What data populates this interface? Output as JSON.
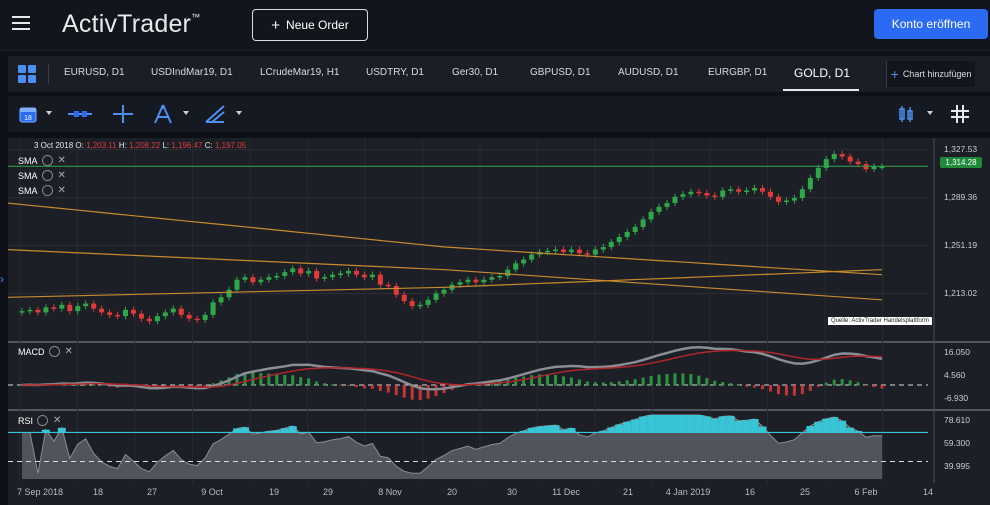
{
  "header": {
    "logo_text": "ActivTrader",
    "logo_tm": "™",
    "new_order_label": "Neue Order",
    "open_account_label": "Konto eröffnen"
  },
  "tabs": [
    {
      "label": "EURUSD, D1",
      "active": false
    },
    {
      "label": "USDIndMar19, D1",
      "active": false
    },
    {
      "label": "LCrudeMar19, H1",
      "active": false
    },
    {
      "label": "USDTRY, D1",
      "active": false
    },
    {
      "label": "Ger30, D1",
      "active": false
    },
    {
      "label": "GBPUSD, D1",
      "active": false
    },
    {
      "label": "AUDUSD, D1",
      "active": false
    },
    {
      "label": "EURGBP, D1",
      "active": false
    },
    {
      "label": "GOLD, D1",
      "active": true
    }
  ],
  "add_chart_label": "Chart hinzufügen",
  "toolbar": {
    "calendar_day": "18"
  },
  "colors": {
    "accent": "#2b6af2",
    "bull": "#2fa84a",
    "bear": "#e03a3a",
    "sma": "#c98a2e",
    "macd_grey": "#8a8d93",
    "macd_red": "#b0262a",
    "rsi_band": "#38c6d6"
  },
  "chart": {
    "ohlc": {
      "date": "3 Oct 2018",
      "o_label": "O:",
      "o": "1,203.11",
      "h_label": "H:",
      "h": "1,208.22",
      "l_label": "L:",
      "l": "1,196.47",
      "c_label": "C:",
      "c": "1,197.05"
    },
    "indicators": [
      "SMA",
      "SMA",
      "SMA"
    ],
    "current_price": "1,314.28",
    "source_note": "Quelle: ActivTrader Handelsplattform"
  },
  "macd_pane": {
    "label": "MACD"
  },
  "rsi_pane": {
    "label": "RSI"
  },
  "chart_data": [
    {
      "type": "candlestick",
      "ylim": [
        1180,
        1332
      ],
      "yticks": [
        "1,327.53",
        "1,289.36",
        "1,251.19",
        "1,213.02"
      ],
      "ytick_values": [
        1327.53,
        1289.36,
        1251.19,
        1213.02
      ],
      "xlabels": [
        "7 Sep 2018",
        "18",
        "27",
        "9 Oct",
        "19",
        "29",
        "8 Nov",
        "20",
        "30",
        "11 Dec",
        "21",
        "4 Jan 2019",
        "16",
        "25",
        "6 Feb",
        "14"
      ],
      "last_price": 1314.28,
      "close": [
        1199,
        1200,
        1198,
        1202,
        1201,
        1204,
        1199,
        1203,
        1205,
        1201,
        1198,
        1196,
        1195,
        1200,
        1197,
        1193,
        1191,
        1195,
        1198,
        1201,
        1196,
        1193,
        1192,
        1196,
        1206,
        1210,
        1216,
        1224,
        1226,
        1222,
        1224,
        1226,
        1227,
        1230,
        1233,
        1229,
        1231,
        1225,
        1226,
        1228,
        1229,
        1231,
        1228,
        1226,
        1228,
        1220,
        1219,
        1212,
        1207,
        1203,
        1204,
        1208,
        1213,
        1216,
        1220,
        1222,
        1224,
        1222,
        1224,
        1226,
        1227,
        1232,
        1237,
        1240,
        1244,
        1246,
        1247,
        1248,
        1246,
        1248,
        1245,
        1244,
        1248,
        1250,
        1254,
        1258,
        1262,
        1266,
        1272,
        1278,
        1282,
        1285,
        1290,
        1292,
        1294,
        1293,
        1291,
        1290,
        1295,
        1296,
        1294,
        1295,
        1297,
        1294,
        1290,
        1286,
        1287,
        1289,
        1296,
        1305,
        1313,
        1320,
        1324,
        1322,
        1318,
        1316,
        1312,
        1314,
        1314
      ],
      "series": [
        {
          "name": "SMA",
          "values": [
            1285,
            1250,
            1228
          ]
        },
        {
          "name": "SMA",
          "values": [
            1248,
            1232,
            1208
          ]
        },
        {
          "name": "SMA",
          "values": [
            1210,
            1218,
            1232
          ]
        }
      ]
    },
    {
      "type": "macd",
      "yticks": [
        "16.050",
        "4.560",
        "-6.930"
      ],
      "ytick_values": [
        16.05,
        4.56,
        -6.93
      ]
    },
    {
      "type": "rsi",
      "yticks": [
        "78.610",
        "59.300",
        "39.995"
      ],
      "ytick_values": [
        78.61,
        59.3,
        39.995
      ]
    }
  ]
}
